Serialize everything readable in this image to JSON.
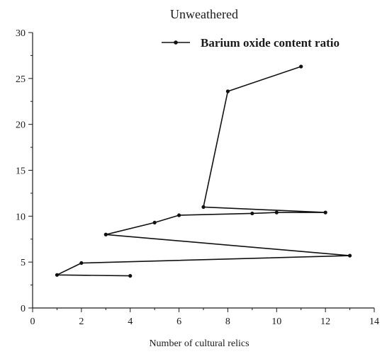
{
  "chart_data": {
    "type": "line",
    "title": "Unweathered",
    "xlabel": "Number of cultural relics",
    "ylabel": "",
    "xlim": [
      0,
      14
    ],
    "ylim": [
      0,
      30
    ],
    "xticks": [
      "0",
      "2",
      "4",
      "6",
      "8",
      "10",
      "12",
      "14"
    ],
    "yticks": [
      "0",
      "5",
      "10",
      "15",
      "20",
      "25",
      "30"
    ],
    "grid": false,
    "legend_position": "top-right",
    "series": [
      {
        "name": "Barium oxide content ratio",
        "color": "#111111",
        "marker": "circle",
        "points": [
          {
            "x": 4,
            "y": 3.5
          },
          {
            "x": 1,
            "y": 3.6
          },
          {
            "x": 2,
            "y": 4.9
          },
          {
            "x": 13,
            "y": 5.7
          },
          {
            "x": 3,
            "y": 8.0
          },
          {
            "x": 5,
            "y": 9.3
          },
          {
            "x": 6,
            "y": 10.1
          },
          {
            "x": 9,
            "y": 10.3
          },
          {
            "x": 10,
            "y": 10.4
          },
          {
            "x": 12,
            "y": 10.4
          },
          {
            "x": 7,
            "y": 11.0
          },
          {
            "x": 8,
            "y": 23.6
          },
          {
            "x": 11,
            "y": 26.3
          }
        ]
      }
    ]
  }
}
